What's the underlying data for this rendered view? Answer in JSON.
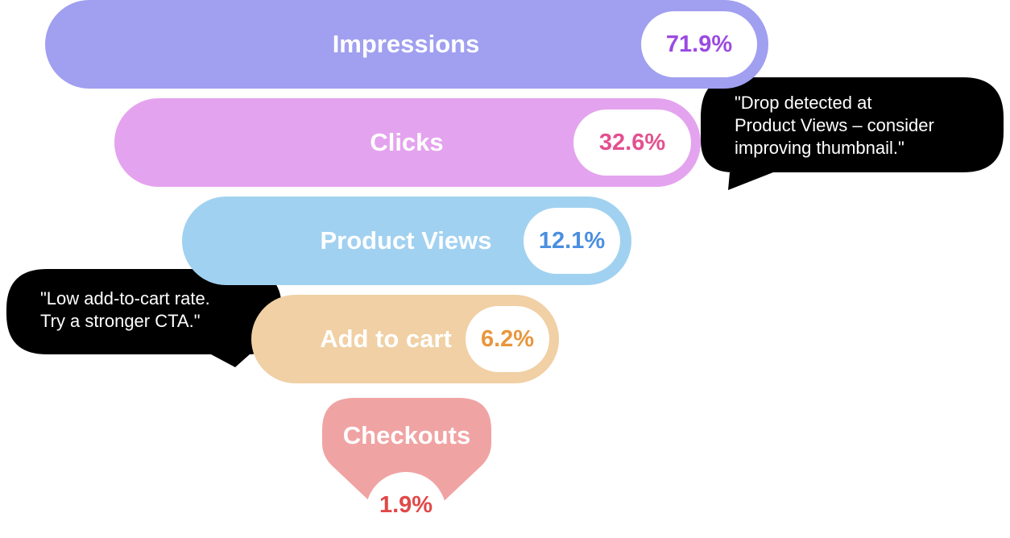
{
  "chart_data": {
    "type": "funnel",
    "stages": [
      {
        "label": "Impressions",
        "value": 71.9,
        "value_label": "71.9%",
        "color": "#a09ff0",
        "text_color": "#9b4ae0"
      },
      {
        "label": "Clicks",
        "value": 32.6,
        "value_label": "32.6%",
        "color": "#e4a3ee",
        "text_color": "#e4508f"
      },
      {
        "label": "Product Views",
        "value": 12.1,
        "value_label": "12.1%",
        "color": "#a1d1f0",
        "text_color": "#4a8ee0"
      },
      {
        "label": "Add to cart",
        "value": 6.2,
        "value_label": "6.2%",
        "color": "#f0d0a4",
        "text_color": "#e8963c"
      },
      {
        "label": "Checkouts",
        "value": 1.9,
        "value_label": "1.9%",
        "color": "#f0a3a3",
        "text_color": "#e04848"
      }
    ],
    "annotations": [
      {
        "text": "\"Drop detected at\nProduct Views – consider\nimproving thumbnail.\"",
        "stage": "Clicks"
      },
      {
        "text": "\"Low add-to-cart rate.\nTry a stronger CTA.\"",
        "stage": "Add to cart"
      }
    ]
  }
}
